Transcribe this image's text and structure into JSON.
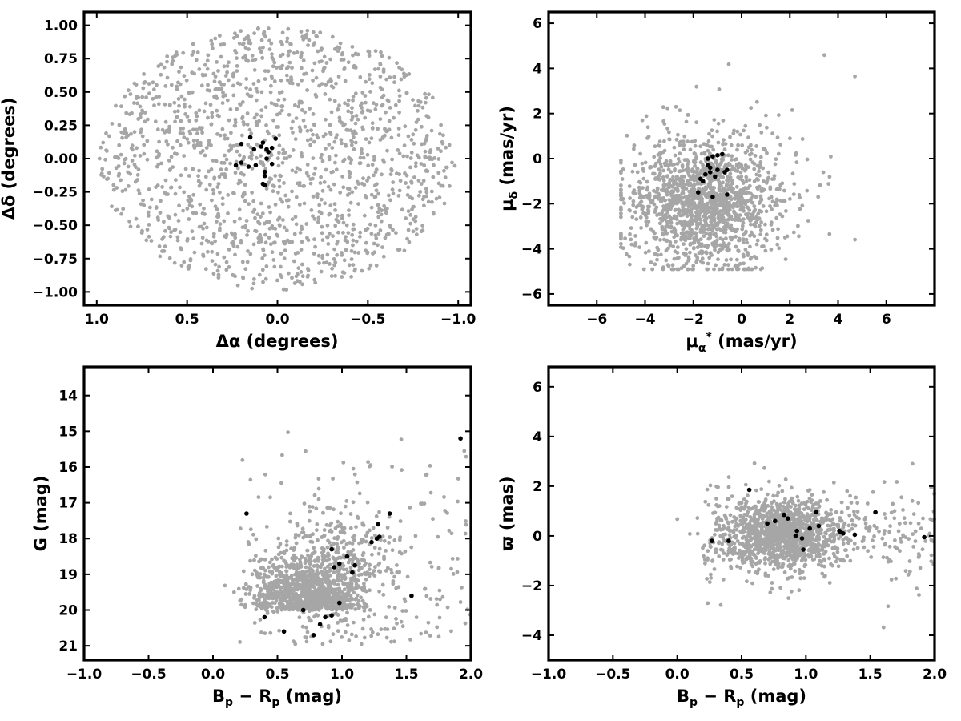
{
  "colors": {
    "background_stars": "#a6a6a6",
    "member_stars": "#000000",
    "frame": "#000000"
  },
  "chart_data": [
    {
      "type": "scatter",
      "id": "sky",
      "xlabel": "Δα (degrees)",
      "ylabel": "Δδ (degrees)",
      "xlim": [
        1.07,
        -1.07
      ],
      "ylim": [
        -1.1,
        1.1
      ],
      "x_inverted": true,
      "xticks": [
        1.0,
        0.5,
        0.0,
        -0.5,
        -1.0
      ],
      "xtick_labels": [
        "1.0",
        "0.5",
        "0.0",
        "−0.5",
        "−1.0"
      ],
      "yticks": [
        -1.0,
        -0.75,
        -0.5,
        -0.25,
        0.0,
        0.25,
        0.5,
        0.75,
        1.0
      ],
      "ytick_labels": [
        "−1.00",
        "−0.75",
        "−0.50",
        "−0.25",
        "0.00",
        "0.25",
        "0.50",
        "0.75",
        "1.00"
      ],
      "background": {
        "count": 1500,
        "distribution": "uniform within circle of radius 1.0 deg centred at (0,0)"
      },
      "members": {
        "x": [
          0.01,
          0.06,
          0.05,
          0.08,
          0.03,
          0.09,
          0.13,
          0.15,
          0.2,
          0.23,
          0.2,
          0.16,
          0.12,
          0.06,
          0.07,
          0.08,
          0.03,
          0.07,
          0.07
        ],
        "y": [
          0.15,
          0.07,
          0.05,
          0.12,
          0.08,
          0.09,
          0.07,
          0.16,
          0.11,
          -0.05,
          -0.03,
          -0.06,
          -0.05,
          0.0,
          -0.1,
          -0.19,
          -0.04,
          -0.13,
          -0.2
        ]
      }
    },
    {
      "type": "scatter",
      "id": "proper-motion",
      "xlabel": "μα* (mas/yr)",
      "ylabel": "μδ (mas/yr)",
      "xlim": [
        -8,
        8
      ],
      "ylim": [
        -6.5,
        6.5
      ],
      "xticks": [
        -6,
        -4,
        -2,
        0,
        2,
        4,
        6
      ],
      "xtick_labels": [
        "−6",
        "−4",
        "−2",
        "0",
        "2",
        "4",
        "6"
      ],
      "yticks": [
        -6,
        -4,
        -2,
        0,
        2,
        4,
        6
      ],
      "ytick_labels": [
        "−6",
        "−4",
        "−2",
        "0",
        "2",
        "4",
        "6"
      ],
      "background": {
        "count": 1500,
        "distribution": "broad cloud centred near (-1.6, -2.0), spread ~1.8 x 1.5 mas/yr"
      },
      "members": {
        "x": [
          -1.4,
          -1.2,
          -1.0,
          -0.8,
          -0.6,
          -1.7,
          -1.5,
          -1.3,
          -1.1,
          -1.6,
          -1.4,
          -0.7,
          -1.2,
          -1.0,
          -1.8,
          -1.3,
          -0.6
        ],
        "y": [
          0.0,
          0.1,
          0.15,
          0.2,
          -0.5,
          -0.9,
          -0.7,
          -0.4,
          -0.8,
          -1.0,
          -0.3,
          -0.6,
          -1.7,
          -0.5,
          -1.5,
          -0.6,
          -1.6
        ]
      }
    },
    {
      "type": "scatter",
      "id": "cmd",
      "xlabel": "Bp − Rp (mag)",
      "ylabel": "G (mag)",
      "xlim": [
        -1.0,
        2.0
      ],
      "ylim": [
        21.4,
        13.2
      ],
      "y_inverted": true,
      "xticks": [
        -1.0,
        -0.5,
        0.0,
        0.5,
        1.0,
        1.5,
        2.0
      ],
      "xtick_labels": [
        "−1.0",
        "−0.5",
        "0.0",
        "0.5",
        "1.0",
        "1.5",
        "2.0"
      ],
      "yticks": [
        14,
        15,
        16,
        17,
        18,
        19,
        20,
        21
      ],
      "ytick_labels": [
        "14",
        "15",
        "16",
        "17",
        "18",
        "19",
        "20",
        "21"
      ],
      "background": {
        "count": 1500,
        "distribution": "dense clump at colour 0.5-1.2, G 18.5-21; sparse tail to brighter G"
      },
      "members": {
        "x": [
          0.4,
          0.55,
          0.7,
          0.78,
          0.83,
          0.87,
          0.92,
          0.98,
          1.08,
          1.1,
          0.94,
          0.98,
          1.04,
          0.92,
          1.23,
          1.27,
          1.29,
          1.28,
          1.37,
          0.26,
          1.54,
          1.92
        ],
        "y": [
          20.2,
          20.6,
          20.0,
          20.7,
          20.4,
          20.2,
          20.15,
          19.8,
          18.95,
          18.75,
          18.8,
          18.7,
          18.5,
          18.3,
          18.1,
          18.0,
          17.95,
          17.6,
          17.3,
          17.3,
          19.6,
          15.2
        ]
      }
    },
    {
      "type": "scatter",
      "id": "parallax",
      "xlabel": "Bp − Rp (mag)",
      "ylabel": "ϖ (mas)",
      "xlim": [
        -1.0,
        2.0
      ],
      "ylim": [
        -5.0,
        6.8
      ],
      "xticks": [
        -1.0,
        -0.5,
        0.0,
        0.5,
        1.0,
        1.5,
        2.0
      ],
      "xtick_labels": [
        "−1.0",
        "−0.5",
        "0.0",
        "0.5",
        "1.0",
        "1.5",
        "2.0"
      ],
      "yticks": [
        -4,
        -2,
        0,
        2,
        4,
        6
      ],
      "ytick_labels": [
        "−4",
        "−2",
        "0",
        "2",
        "4",
        "6"
      ],
      "background": {
        "count": 1500,
        "distribution": "concentrated at colour 0.5-1.3, parallax near 0 with spread ~0.8 mas"
      },
      "members": {
        "x": [
          0.27,
          0.4,
          0.56,
          0.7,
          0.76,
          0.83,
          0.86,
          0.92,
          0.93,
          0.97,
          0.98,
          1.03,
          1.08,
          1.1,
          1.26,
          1.27,
          1.29,
          1.38,
          1.54,
          1.92
        ],
        "y": [
          -0.2,
          -0.2,
          1.85,
          0.5,
          0.6,
          0.85,
          0.7,
          0.0,
          0.2,
          -0.1,
          -0.55,
          0.3,
          0.95,
          0.4,
          0.2,
          0.15,
          0.1,
          0.05,
          0.95,
          -0.05
        ]
      }
    }
  ]
}
